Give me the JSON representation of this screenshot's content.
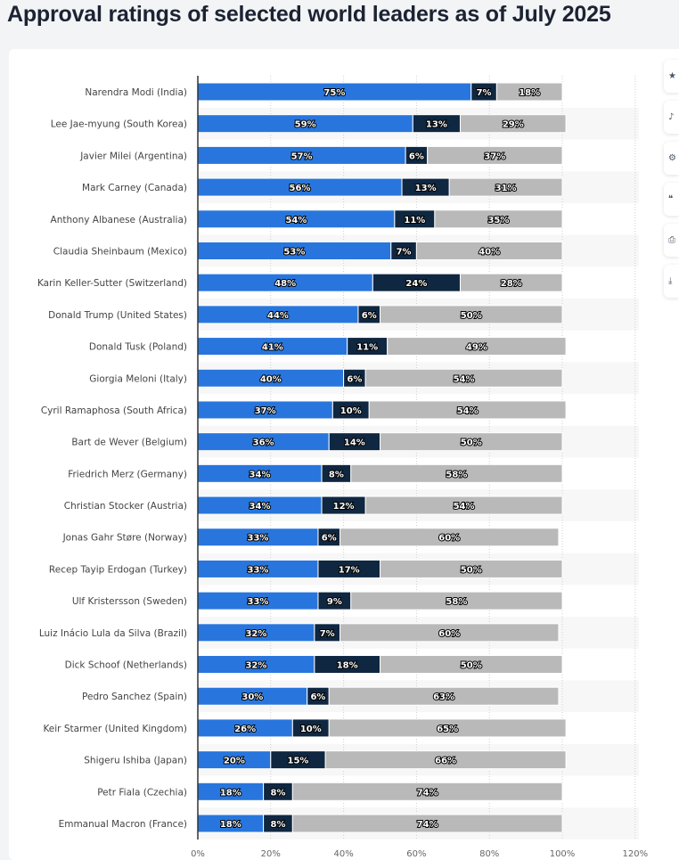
{
  "title": "Approval ratings of selected world leaders as of July 2025",
  "toolbar": {
    "icons": [
      "star-icon",
      "bell-icon",
      "settings-icon",
      "quote-icon",
      "print-icon",
      "download-icon"
    ]
  },
  "chart_data": {
    "type": "stacked-bar-horizontal",
    "title": "Approval ratings of selected world leaders as of July 2025",
    "categories": [
      "Narendra Modi (India)",
      "Lee Jae-myung (South Korea)",
      "Javier Milei (Argentina)",
      "Mark Carney (Canada)",
      "Anthony Albanese (Australia)",
      "Claudia Sheinbaum (Mexico)",
      "Karin Keller-Sutter (Switzerland)",
      "Donald Trump (United States)",
      "Donald Tusk (Poland)",
      "Giorgia Meloni (Italy)",
      "Cyril Ramaphosa (South Africa)",
      "Bart de Wever (Belgium)",
      "Friedrich Merz (Germany)",
      "Christian Stocker (Austria)",
      "Jonas Gahr Støre (Norway)",
      "Recep Tayip Erdogan (Turkey)",
      "Ulf Kristersson (Sweden)",
      "Luiz Inácio Lula da Silva (Brazil)",
      "Dick Schoof (Netherlands)",
      "Pedro Sanchez (Spain)",
      "Keir Starmer (United Kingdom)",
      "Shigeru Ishiba (Japan)",
      "Petr Fiala (Czechia)",
      "Emmanual Macron (France)"
    ],
    "series": [
      {
        "values": [
          75,
          59,
          57,
          56,
          54,
          53,
          48,
          44,
          41,
          40,
          37,
          36,
          34,
          34,
          33,
          33,
          33,
          32,
          32,
          30,
          26,
          20,
          18,
          18
        ],
        "color": "#2876dd"
      },
      {
        "values": [
          7,
          13,
          6,
          13,
          11,
          7,
          24,
          6,
          11,
          6,
          10,
          14,
          8,
          12,
          6,
          17,
          9,
          7,
          18,
          6,
          10,
          15,
          8,
          8
        ],
        "color": "#0f2741"
      },
      {
        "values": [
          18,
          29,
          37,
          31,
          35,
          40,
          28,
          50,
          49,
          54,
          54,
          50,
          58,
          54,
          60,
          50,
          58,
          60,
          50,
          63,
          65,
          66,
          74,
          74
        ],
        "color": "#b9b9b9"
      }
    ],
    "xlim": [
      0,
      120
    ],
    "xticks": [
      "0%",
      "20%",
      "40%",
      "60%",
      "80%",
      "100%",
      "120%"
    ],
    "value_suffix": "%",
    "grid": true,
    "legend": "none"
  }
}
